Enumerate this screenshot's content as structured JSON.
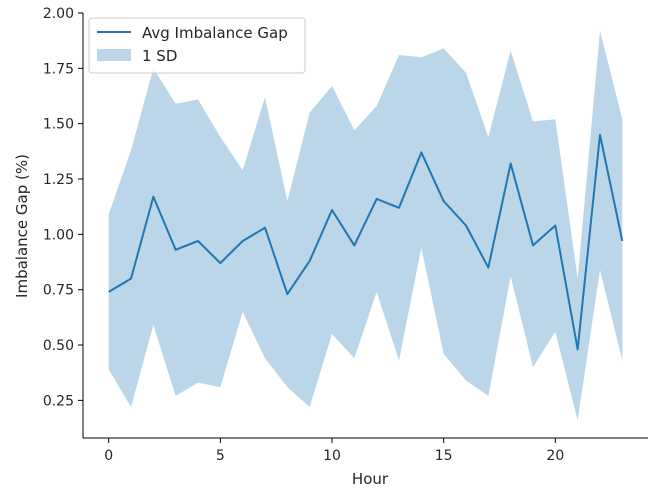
{
  "chart_data": {
    "type": "line",
    "x": [
      0,
      1,
      2,
      3,
      4,
      5,
      6,
      7,
      8,
      9,
      10,
      11,
      12,
      13,
      14,
      15,
      16,
      17,
      18,
      19,
      20,
      21,
      22,
      23
    ],
    "series": [
      {
        "name": "Avg Imbalance Gap",
        "values": [
          0.74,
          0.8,
          1.17,
          0.93,
          0.97,
          0.87,
          0.97,
          1.03,
          0.73,
          0.88,
          1.11,
          0.95,
          1.16,
          1.12,
          1.37,
          1.15,
          1.04,
          0.85,
          1.32,
          0.95,
          1.04,
          0.48,
          1.45,
          0.97
        ],
        "color": "#1f77b4"
      }
    ],
    "band": {
      "name": "1 SD",
      "lower": [
        0.39,
        0.22,
        0.59,
        0.27,
        0.33,
        0.31,
        0.65,
        0.44,
        0.31,
        0.22,
        0.55,
        0.44,
        0.74,
        0.43,
        0.94,
        0.46,
        0.34,
        0.27,
        0.81,
        0.4,
        0.56,
        0.16,
        0.84,
        0.43
      ],
      "upper": [
        1.09,
        1.38,
        1.75,
        1.59,
        1.61,
        1.44,
        1.29,
        1.62,
        1.15,
        1.55,
        1.67,
        1.47,
        1.58,
        1.81,
        1.8,
        1.84,
        1.73,
        1.44,
        1.83,
        1.51,
        1.52,
        0.8,
        1.92,
        1.52
      ],
      "color": "#1f77b4",
      "opacity": 0.3
    },
    "title": "",
    "xlabel": "Hour",
    "ylabel": "Imbalance Gap (%)",
    "xlim": [
      -1.15,
      24.15
    ],
    "ylim": [
      0.08,
      2.0
    ],
    "xticks": [
      0,
      5,
      10,
      15,
      20
    ],
    "xtick_labels": [
      "0",
      "5",
      "10",
      "15",
      "20"
    ],
    "yticks": [
      0.25,
      0.5,
      0.75,
      1.0,
      1.25,
      1.5,
      1.75,
      2.0
    ],
    "ytick_labels": [
      "0.25",
      "0.50",
      "0.75",
      "1.00",
      "1.25",
      "1.50",
      "1.75",
      "2.00"
    ],
    "grid": false,
    "legend": "top-left"
  }
}
